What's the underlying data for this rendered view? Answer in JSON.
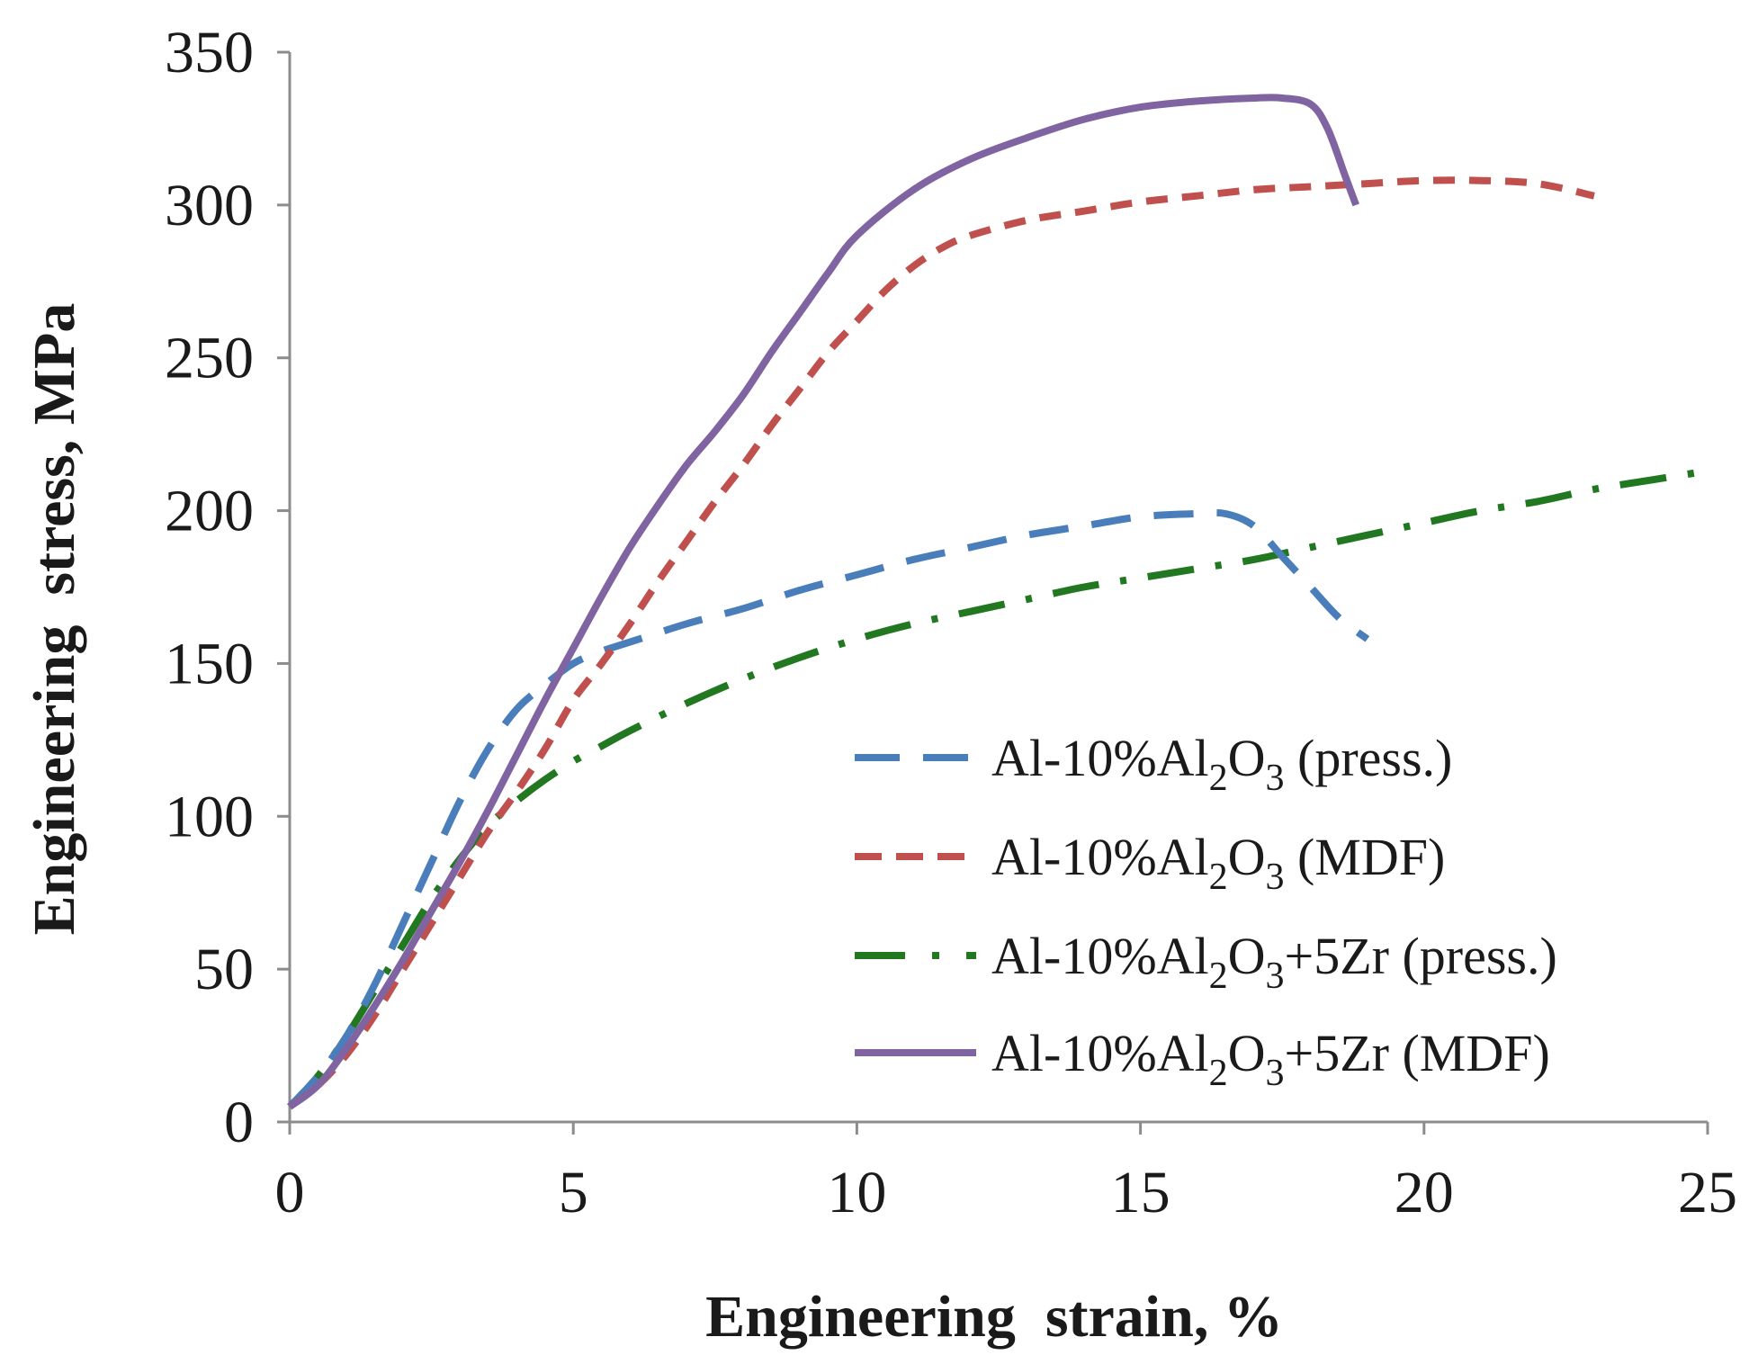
{
  "chart_data": {
    "type": "line",
    "title": "",
    "xlabel": "Engineering  strain, %",
    "ylabel": "Engineering  stress, MPa",
    "xlim": [
      0,
      25
    ],
    "ylim": [
      0,
      350
    ],
    "xticks": [
      0,
      5,
      10,
      15,
      20,
      25
    ],
    "yticks": [
      0,
      50,
      100,
      150,
      200,
      250,
      300,
      350
    ],
    "grid": false,
    "legend_position": "bottom-right",
    "series": [
      {
        "name": "Al-10%Al2O3 (press.)",
        "legend": {
          "base": "Al-10%Al",
          "sub1": "2",
          "mid": "O",
          "sub2": "3",
          "tail": " (press.)"
        },
        "color": "#4a7ebb",
        "dash": "long-dash",
        "x": [
          0,
          0.5,
          1.0,
          1.5,
          2.0,
          2.5,
          3.0,
          3.5,
          4.0,
          4.5,
          5.0,
          5.5,
          6.0,
          7.0,
          8.0,
          9.0,
          10.0,
          11.0,
          12.0,
          13.0,
          14.0,
          15.0,
          16.0,
          16.5,
          17.0,
          17.5,
          18.0,
          18.5,
          19.0
        ],
        "y": [
          5,
          15,
          28,
          45,
          65,
          85,
          105,
          122,
          135,
          143,
          150,
          154,
          157,
          163,
          168,
          174,
          179,
          184,
          188,
          192,
          195,
          198,
          199,
          199,
          195,
          185,
          175,
          165,
          158
        ]
      },
      {
        "name": "Al-10%Al2O3 (MDF)",
        "legend": {
          "base": "Al-10%Al",
          "sub1": "2",
          "mid": "O",
          "sub2": "3",
          "tail": " (MDF)"
        },
        "color": "#c0504d",
        "dash": "short-dash",
        "x": [
          0,
          0.5,
          1.0,
          1.5,
          2.0,
          2.5,
          3.0,
          3.5,
          4.0,
          4.5,
          5.0,
          5.5,
          6.0,
          6.5,
          7.0,
          7.5,
          8.0,
          8.5,
          9.0,
          9.5,
          10.0,
          10.5,
          11.0,
          11.5,
          12.0,
          13.0,
          14.0,
          15.0,
          16.0,
          17.0,
          18.0,
          19.0,
          20.0,
          21.0,
          22.0,
          23.0
        ],
        "y": [
          5,
          12,
          22,
          35,
          50,
          65,
          80,
          95,
          108,
          122,
          138,
          150,
          163,
          177,
          190,
          203,
          215,
          228,
          240,
          252,
          262,
          272,
          280,
          286,
          290,
          295,
          298,
          301,
          303,
          305,
          306,
          307,
          308,
          308,
          307,
          303
        ]
      },
      {
        "name": "Al-10%Al2O3+5Zr (press.)",
        "legend": {
          "base": "Al-10%Al",
          "sub1": "2",
          "mid": "O",
          "sub2": "3",
          "tail": "+5Zr (press.)"
        },
        "color": "#217821",
        "dash": "dash-dot",
        "x": [
          0,
          0.5,
          1.0,
          1.5,
          2.0,
          2.5,
          3.0,
          3.5,
          4.0,
          4.5,
          5.0,
          5.5,
          6.0,
          7.0,
          8.0,
          9.0,
          10.0,
          11.0,
          12.0,
          13.0,
          14.0,
          15.0,
          16.0,
          17.0,
          18.0,
          19.0,
          20.0,
          21.0,
          22.0,
          23.0,
          24.0,
          25.0
        ],
        "y": [
          5,
          15,
          28,
          43,
          58,
          73,
          86,
          97,
          105,
          112,
          118,
          123,
          128,
          137,
          145,
          152,
          158,
          163,
          167,
          171,
          175,
          178,
          181,
          184,
          188,
          192,
          196,
          200,
          203,
          207,
          210,
          213
        ]
      },
      {
        "name": "Al-10%Al2O3+5Zr (MDF)",
        "legend": {
          "base": "Al-10%Al",
          "sub1": "2",
          "mid": "O",
          "sub2": "3",
          "tail": "+5Zr (MDF)"
        },
        "color": "#8064a2",
        "dash": "solid",
        "x": [
          0,
          0.5,
          1.0,
          1.5,
          2.0,
          2.5,
          3.0,
          3.5,
          4.0,
          4.5,
          5.0,
          5.5,
          6.0,
          6.5,
          7.0,
          7.5,
          8.0,
          8.5,
          9.0,
          9.5,
          10.0,
          11.0,
          12.0,
          13.0,
          14.0,
          15.0,
          16.0,
          17.0,
          17.5,
          18.0,
          18.3,
          18.6,
          18.8
        ],
        "y": [
          5,
          12,
          24,
          38,
          53,
          69,
          85,
          102,
          120,
          138,
          155,
          172,
          188,
          202,
          215,
          226,
          238,
          252,
          265,
          278,
          290,
          305,
          315,
          322,
          328,
          332,
          334,
          335,
          335,
          333,
          325,
          310,
          300
        ]
      }
    ]
  }
}
